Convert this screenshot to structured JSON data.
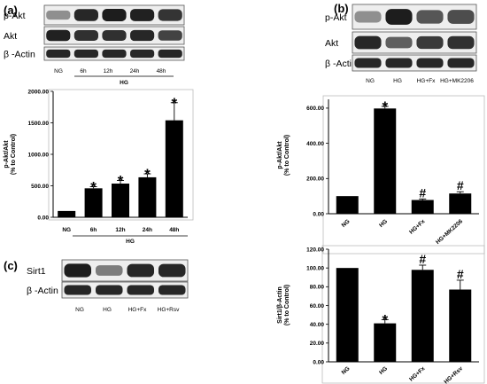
{
  "panels": {
    "a": {
      "letter": "(a)",
      "blot_rows": [
        "p-Akt",
        "Akt",
        "β -Actin"
      ],
      "lanes": [
        "NG",
        "6h",
        "12h",
        "24h",
        "48h"
      ],
      "group_label": "HG"
    },
    "b": {
      "letter": "(b)",
      "blot_rows": [
        "p-Akt",
        "Akt",
        "β -Actin"
      ],
      "lanes": [
        "NG",
        "HG",
        "HG+Fx",
        "HG+MK2206"
      ]
    },
    "c": {
      "letter": "(c)",
      "blot_rows": [
        "Sirt1",
        "β -Actin"
      ],
      "lanes": [
        "NG",
        "HG",
        "HG+Fx",
        "HG+Rsv"
      ]
    }
  },
  "chart_data": [
    {
      "id": "a",
      "type": "bar",
      "categories": [
        "NG",
        "6h",
        "12h",
        "24h",
        "48h"
      ],
      "values": [
        100,
        460,
        535,
        635,
        1540
      ],
      "errors": [
        0,
        25,
        50,
        55,
        280
      ],
      "markers": [
        "",
        "*",
        "*",
        "*",
        "*"
      ],
      "group_label": "HG",
      "ylabel": [
        "p-Akt/Akt",
        "(% to Control)"
      ],
      "yticks": [
        "0.00",
        "500.00",
        "1000.00",
        "1500.00",
        "2000.00"
      ],
      "ylim": [
        0,
        2000
      ],
      "bar_color": "#000000"
    },
    {
      "id": "b",
      "type": "bar",
      "categories": [
        "NG",
        "HG",
        "HG+Fx",
        "HG+MK2206"
      ],
      "values": [
        100,
        598,
        78,
        115
      ],
      "errors": [
        0,
        12,
        6,
        10
      ],
      "markers": [
        "",
        "*",
        "#",
        "#"
      ],
      "ylabel": [
        "p-Akt/Akt",
        "(% to Control)"
      ],
      "yticks": [
        "0.00",
        "200.00",
        "400.00",
        "600.00"
      ],
      "ylim": [
        0,
        650
      ],
      "bar_color": "#000000"
    },
    {
      "id": "c",
      "type": "bar",
      "categories": [
        "NG",
        "HG",
        "HG+Fx",
        "HG+Rsv"
      ],
      "values": [
        100,
        41,
        98,
        77
      ],
      "errors": [
        0,
        4,
        5,
        10
      ],
      "markers": [
        "",
        "*",
        "#",
        "#"
      ],
      "ylabel": [
        "Sirt1/β-Actin",
        "(% to Control)"
      ],
      "yticks": [
        "0.00",
        "20.00",
        "40.00",
        "60.00",
        "80.00",
        "100.00",
        "120.00"
      ],
      "ylim": [
        0,
        120
      ],
      "bar_color": "#000000"
    }
  ]
}
